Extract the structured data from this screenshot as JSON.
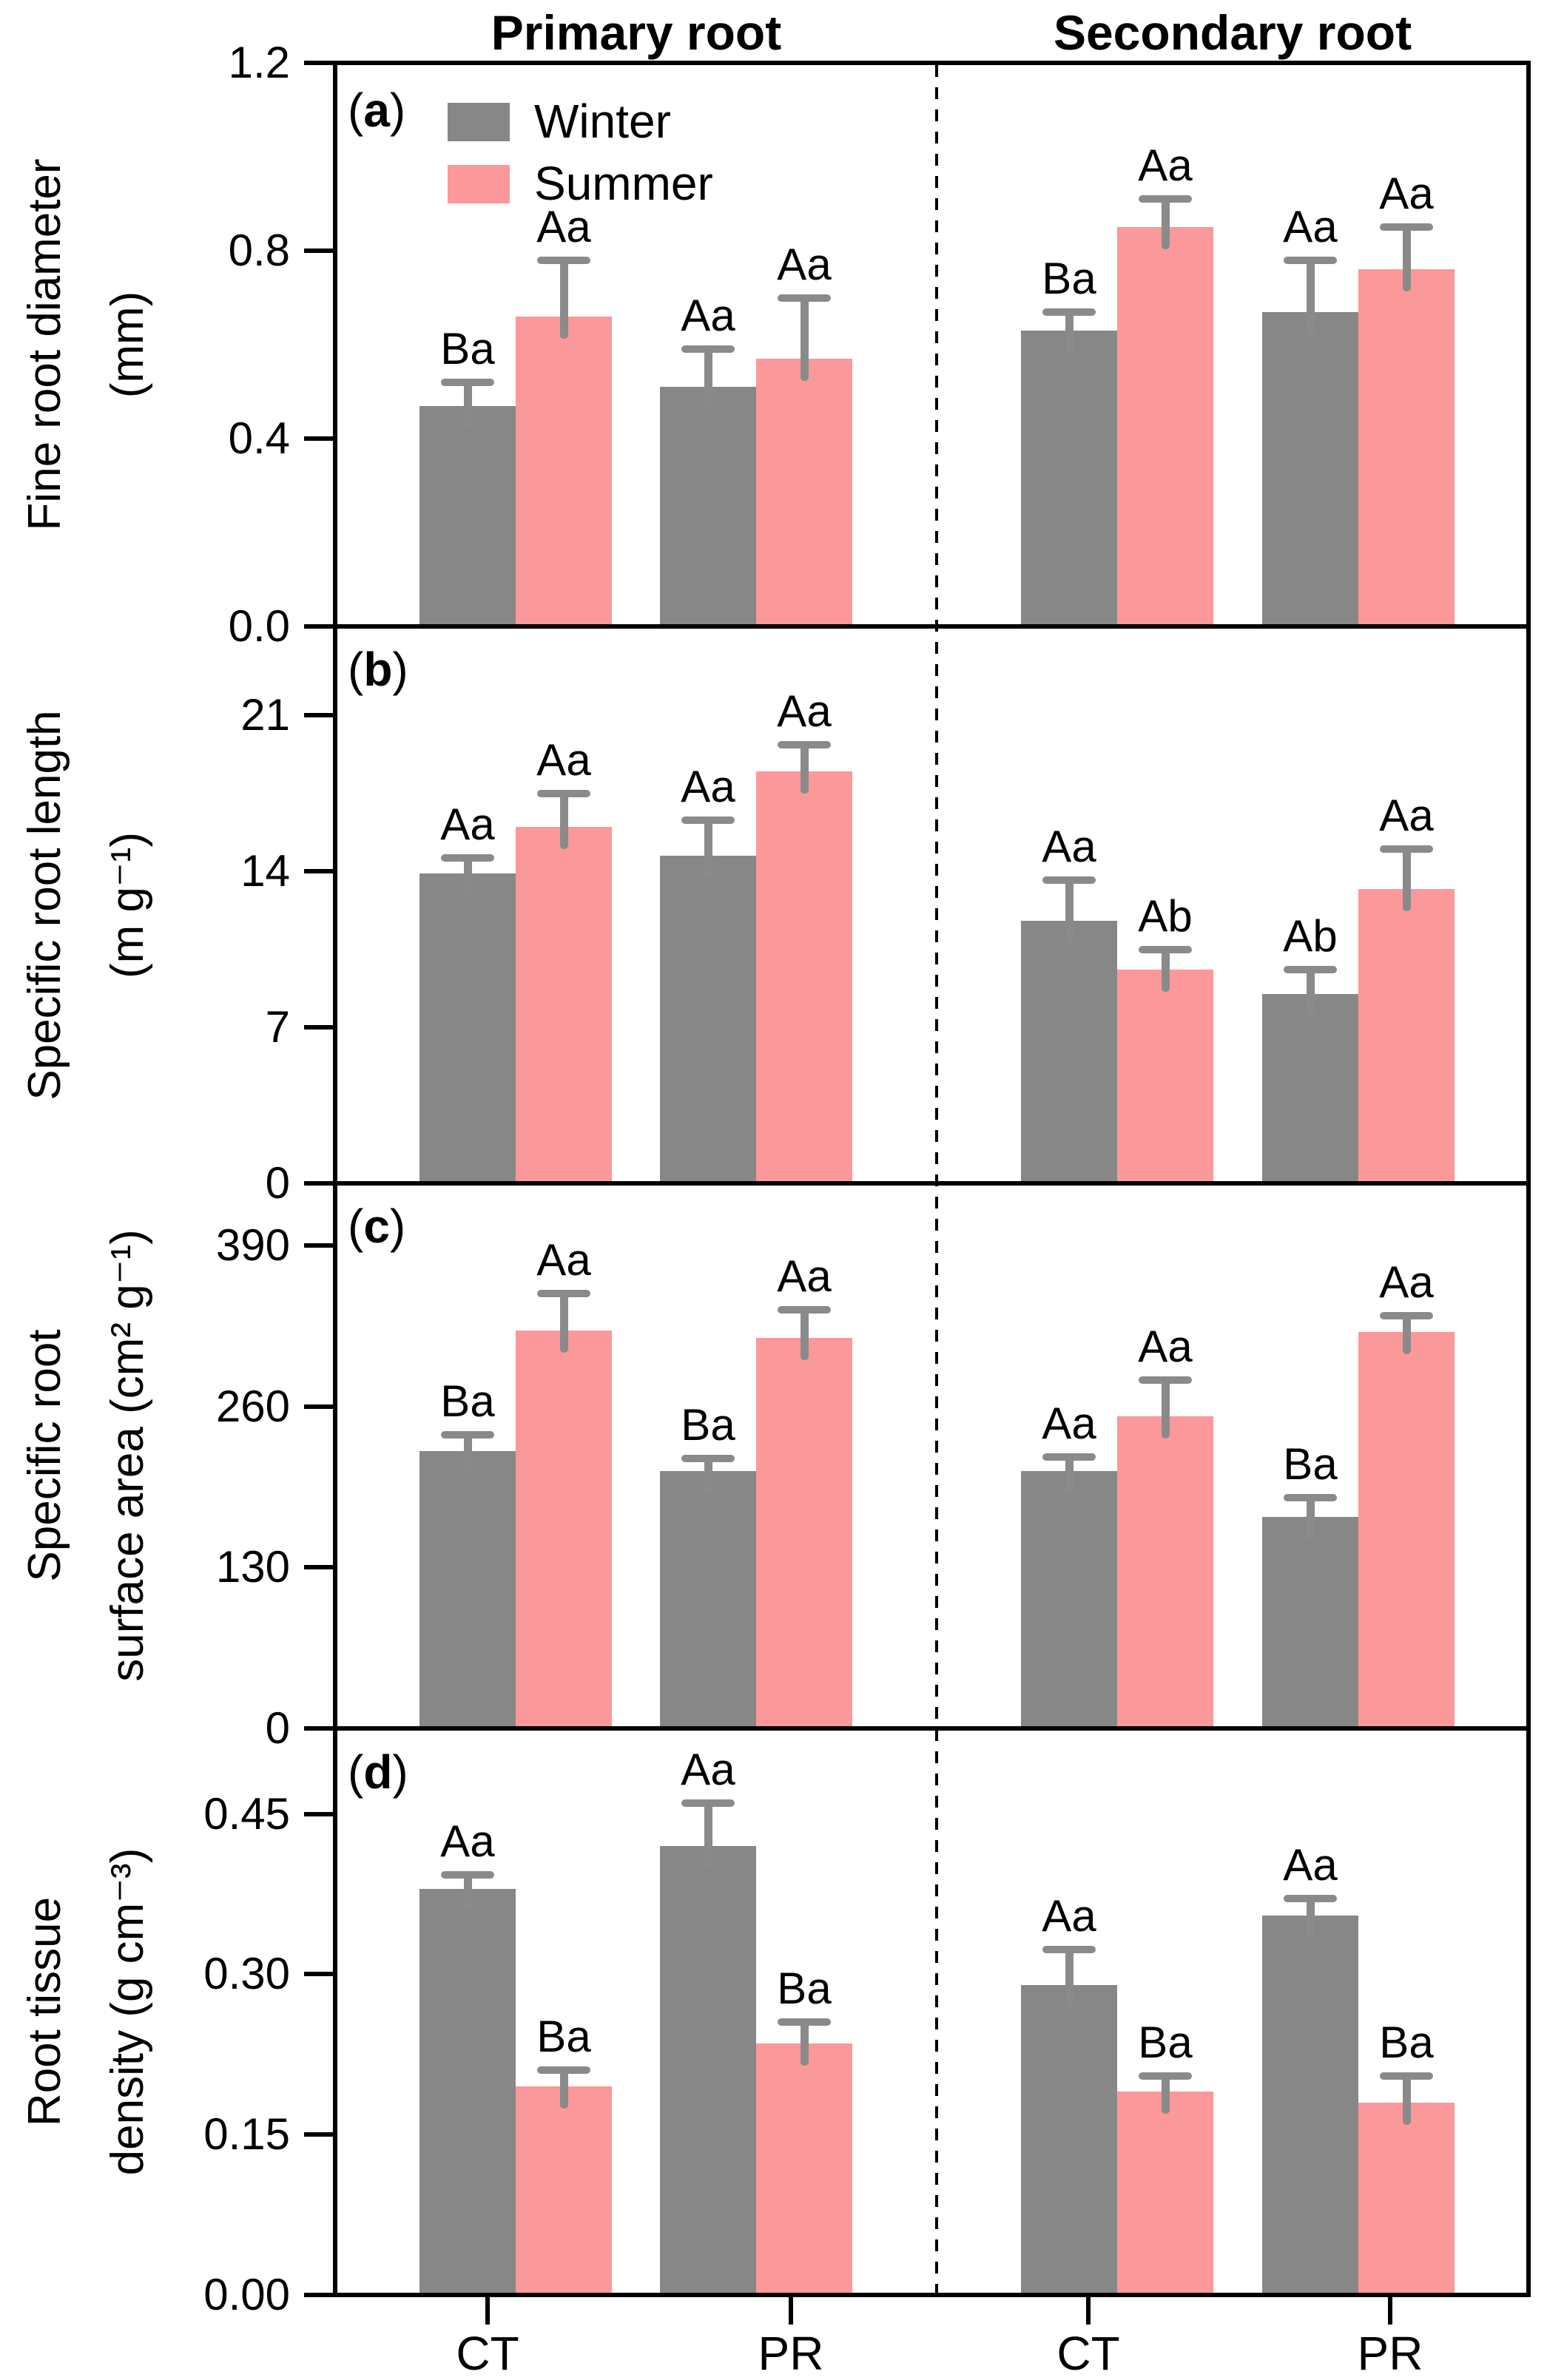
{
  "ui": {
    "paren_open": "(",
    "paren_close": ")"
  },
  "figure": {
    "column_titles": [
      "Primary root",
      "Secondary root"
    ],
    "x_group_labels": [
      "CT",
      "PR",
      "CT",
      "PR"
    ],
    "legend": {
      "position": "top-left of panel a",
      "items": [
        {
          "label": "Winter",
          "color": "#878787"
        },
        {
          "label": "Summer",
          "color": "#FA989A"
        }
      ]
    },
    "colors": {
      "winter_bar": "#878787",
      "summer_bar": "#FA989A",
      "error_bar": "#8A8A8A",
      "frame": "#000000",
      "background": "#FFFFFF"
    }
  },
  "chart_data": [
    {
      "type": "bar",
      "panel_letter": "a",
      "ylabel_lines": [
        "Fine root diameter",
        "(mm)"
      ],
      "ylim": [
        0,
        1.2
      ],
      "yticks": [
        0,
        0.4,
        0.8,
        1.2
      ],
      "ytick_labels": [
        "0.0",
        "0.4",
        "0.8",
        "1.2"
      ],
      "grid": false,
      "group_labels": [
        "CT",
        "PR",
        "CT",
        "PR"
      ],
      "group_sections": [
        "Primary root",
        "Primary root",
        "Secondary root",
        "Secondary root"
      ],
      "series": [
        {
          "name": "Winter",
          "values": [
            0.47,
            0.51,
            0.63,
            0.67
          ],
          "errors": [
            0.05,
            0.08,
            0.04,
            0.11
          ],
          "sig_labels": [
            "Ba",
            "Aa",
            "Ba",
            "Aa"
          ]
        },
        {
          "name": "Summer",
          "values": [
            0.66,
            0.57,
            0.85,
            0.76
          ],
          "errors": [
            0.12,
            0.13,
            0.06,
            0.09
          ],
          "sig_labels": [
            "Aa",
            "Aa",
            "Aa",
            "Aa"
          ]
        }
      ]
    },
    {
      "type": "bar",
      "panel_letter": "b",
      "ylabel_lines": [
        "Specific root length",
        "(m g⁻¹)"
      ],
      "ylim": [
        0,
        25
      ],
      "yticks": [
        0,
        7,
        14,
        21
      ],
      "ytick_labels": [
        "0",
        "7",
        "14",
        "21"
      ],
      "grid": false,
      "group_labels": [
        "CT",
        "PR",
        "CT",
        "PR"
      ],
      "group_sections": [
        "Primary root",
        "Primary root",
        "Secondary root",
        "Secondary root"
      ],
      "series": [
        {
          "name": "Winter",
          "values": [
            13.9,
            14.7,
            11.8,
            8.5
          ],
          "errors": [
            0.7,
            1.6,
            1.8,
            1.1
          ],
          "sig_labels": [
            "Aa",
            "Aa",
            "Aa",
            "Ab"
          ]
        },
        {
          "name": "Summer",
          "values": [
            16.0,
            18.5,
            9.6,
            13.2
          ],
          "errors": [
            1.5,
            1.2,
            0.9,
            1.8
          ],
          "sig_labels": [
            "Aa",
            "Aa",
            "Ab",
            "Aa"
          ]
        }
      ]
    },
    {
      "type": "bar",
      "panel_letter": "c",
      "ylabel_lines": [
        "Specific root",
        "surface area (cm² g⁻¹)"
      ],
      "ylim": [
        0,
        440
      ],
      "yticks": [
        0,
        130,
        260,
        390
      ],
      "ytick_labels": [
        "0",
        "130",
        "260",
        "390"
      ],
      "grid": false,
      "group_labels": [
        "CT",
        "PR",
        "CT",
        "PR"
      ],
      "group_sections": [
        "Primary root",
        "Primary root",
        "Secondary root",
        "Secondary root"
      ],
      "series": [
        {
          "name": "Winter",
          "values": [
            224,
            208,
            208,
            171
          ],
          "errors": [
            13,
            10,
            11,
            15
          ],
          "sig_labels": [
            "Ba",
            "Ba",
            "Aa",
            "Ba"
          ]
        },
        {
          "name": "Summer",
          "values": [
            321,
            315,
            252,
            320
          ],
          "errors": [
            30,
            23,
            29,
            13
          ],
          "sig_labels": [
            "Aa",
            "Aa",
            "Aa",
            "Aa"
          ]
        }
      ]
    },
    {
      "type": "bar",
      "panel_letter": "d",
      "ylabel_lines": [
        "Root tissue",
        "density (g cm⁻³)"
      ],
      "ylim": [
        0,
        0.53
      ],
      "yticks": [
        0,
        0.15,
        0.3,
        0.45
      ],
      "ytick_labels": [
        "0.00",
        "0.15",
        "0.30",
        "0.45"
      ],
      "grid": false,
      "group_labels": [
        "CT",
        "PR",
        "CT",
        "PR"
      ],
      "group_sections": [
        "Primary root",
        "Primary root",
        "Secondary root",
        "Secondary root"
      ],
      "series": [
        {
          "name": "Winter",
          "values": [
            0.38,
            0.42,
            0.29,
            0.355
          ],
          "errors": [
            0.013,
            0.04,
            0.033,
            0.016
          ],
          "sig_labels": [
            "Aa",
            "Aa",
            "Aa",
            "Aa"
          ]
        },
        {
          "name": "Summer",
          "values": [
            0.195,
            0.235,
            0.19,
            0.18
          ],
          "errors": [
            0.015,
            0.02,
            0.015,
            0.025
          ],
          "sig_labels": [
            "Ba",
            "Ba",
            "Ba",
            "Ba"
          ]
        }
      ]
    }
  ]
}
